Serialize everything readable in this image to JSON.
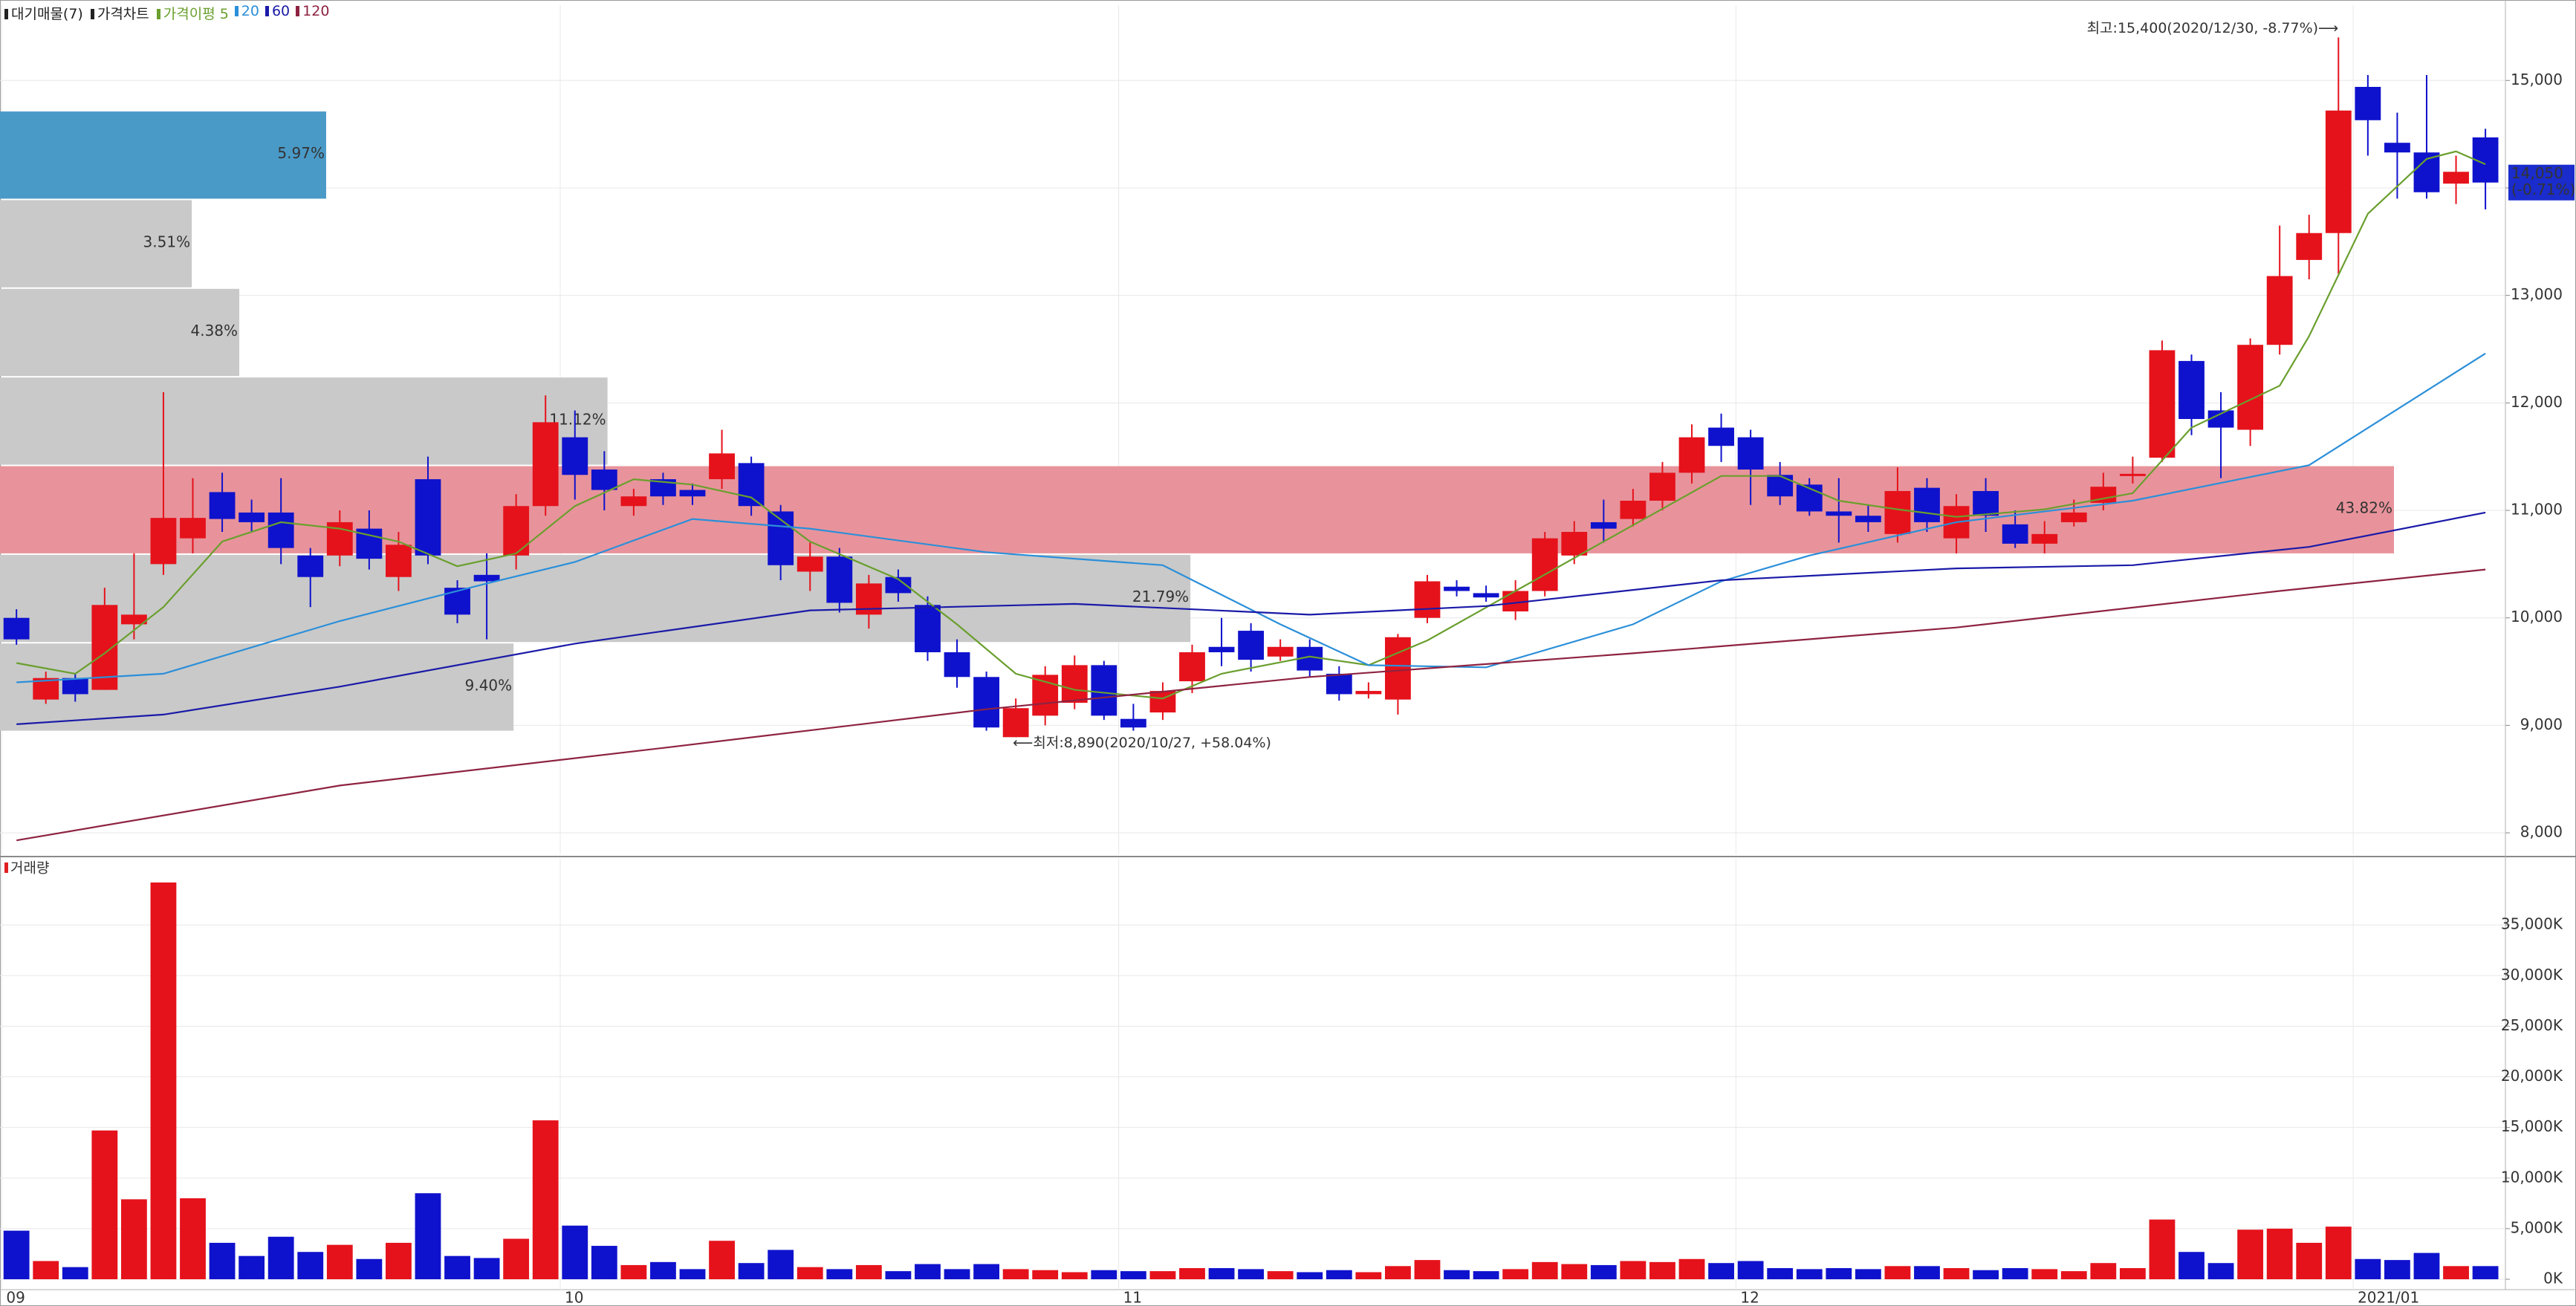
{
  "chart_data": [
    {
      "type": "candlestick",
      "name": "가격차트",
      "up_color": "#e5121b",
      "down_color": "#0f12cc",
      "xlim": [
        -0.56,
        84.68
      ],
      "ylim": [
        7800,
        15700
      ],
      "yticks": [
        {
          "value": 8000,
          "label": "8,000"
        },
        {
          "value": 9000,
          "label": "9,000"
        },
        {
          "value": 10000,
          "label": "10,000"
        },
        {
          "value": 11000,
          "label": "11,000"
        },
        {
          "value": 12000,
          "label": "12,000"
        },
        {
          "value": 13000,
          "label": "13,000"
        },
        {
          "value": 14000,
          "label": "14,000"
        },
        {
          "value": 15000,
          "label": "15,000"
        }
      ],
      "grid": true,
      "open": [
        10000,
        9240,
        9440,
        9330,
        9940,
        10500,
        10740,
        11170,
        10980,
        10980,
        10580,
        10580,
        10830,
        10380,
        11290,
        10280,
        10400,
        10580,
        11040,
        11680,
        11380,
        11040,
        11290,
        11190,
        11290,
        11440,
        10990,
        10430,
        10570,
        10030,
        10380,
        10120,
        9680,
        9450,
        8890,
        9090,
        9210,
        9560,
        9060,
        9120,
        9410,
        9730,
        9880,
        9640,
        9730,
        9480,
        9290,
        9240,
        10000,
        10290,
        10230,
        10060,
        10250,
        10580,
        10890,
        10920,
        11090,
        11350,
        11770,
        11680,
        11330,
        11240,
        10990,
        10950,
        10780,
        11210,
        10740,
        11180,
        10870,
        10690,
        10890,
        11070,
        11330,
        11490,
        12390,
        11930,
        11750,
        12540,
        13330,
        13580,
        14940,
        14420,
        14330,
        14040,
        14470
      ],
      "high": [
        10080,
        9500,
        9480,
        10280,
        10600,
        12100,
        11300,
        11350,
        11100,
        11300,
        10650,
        11000,
        11000,
        10800,
        11500,
        10350,
        10600,
        11150,
        12070,
        11930,
        11550,
        11200,
        11350,
        11250,
        11750,
        11500,
        11050,
        10700,
        10650,
        10400,
        10450,
        10200,
        9800,
        9500,
        9250,
        9550,
        9650,
        9600,
        9200,
        9400,
        9750,
        10000,
        9950,
        9800,
        9800,
        9550,
        9400,
        9850,
        10400,
        10350,
        10300,
        10350,
        10800,
        10900,
        11100,
        11200,
        11450,
        11800,
        11900,
        11750,
        11450,
        11300,
        11300,
        11050,
        11400,
        11300,
        11150,
        11300,
        11000,
        10900,
        11100,
        11350,
        11500,
        12580,
        12450,
        12100,
        12600,
        13650,
        13750,
        15400,
        15050,
        14700,
        15050,
        14300,
        14550
      ],
      "low": [
        9750,
        9200,
        9220,
        9330,
        9800,
        10400,
        10600,
        10800,
        10800,
        10500,
        10100,
        10480,
        10450,
        10250,
        10500,
        9950,
        9800,
        10450,
        10950,
        11100,
        11000,
        10950,
        11050,
        11050,
        11200,
        10950,
        10350,
        10250,
        10050,
        9900,
        10150,
        9600,
        9350,
        8950,
        8890,
        9000,
        9150,
        9050,
        8950,
        9050,
        9300,
        9550,
        9500,
        9600,
        9450,
        9230,
        9250,
        9100,
        9950,
        10200,
        10150,
        9980,
        10200,
        10500,
        10700,
        10850,
        11000,
        11250,
        11450,
        11050,
        11050,
        10950,
        10700,
        10800,
        10700,
        10800,
        10600,
        10800,
        10650,
        10600,
        10850,
        11000,
        11250,
        11450,
        11700,
        11300,
        11600,
        12450,
        13150,
        13200,
        14300,
        13900,
        13900,
        13850,
        13800
      ],
      "close": [
        9800,
        9440,
        9290,
        10120,
        10030,
        10930,
        10930,
        10920,
        10890,
        10650,
        10380,
        10890,
        10550,
        10680,
        10580,
        10030,
        10340,
        11040,
        11820,
        11330,
        11190,
        11130,
        11130,
        11130,
        11530,
        11040,
        10490,
        10570,
        10140,
        10320,
        10230,
        9680,
        9450,
        8980,
        9160,
        9470,
        9560,
        9090,
        8980,
        9320,
        9680,
        9680,
        9610,
        9730,
        9510,
        9290,
        9320,
        9820,
        10340,
        10250,
        10190,
        10250,
        10740,
        10800,
        10830,
        11090,
        11350,
        11680,
        11600,
        11380,
        11130,
        10990,
        10950,
        10890,
        11180,
        10890,
        11040,
        10950,
        10690,
        10780,
        10980,
        11220,
        11340,
        12490,
        11850,
        11770,
        12540,
        13180,
        13580,
        14720,
        14630,
        14330,
        13960,
        14150,
        14050
      ],
      "moving_average_label": "가격이평",
      "moving_averages": [
        {
          "name": "5",
          "color": "#6a9f2e",
          "x": [
            0,
            2,
            3,
            5,
            7,
            9,
            11,
            13,
            15,
            17,
            19,
            21,
            23,
            25,
            27,
            30,
            32,
            34,
            36,
            39,
            41,
            44,
            46,
            48,
            51,
            54,
            58,
            60,
            62,
            64,
            66,
            69,
            72,
            74,
            77,
            78,
            80,
            82,
            83,
            84
          ],
          "values": [
            9580,
            9480,
            9670,
            10100,
            10710,
            10890,
            10830,
            10710,
            10480,
            10600,
            11040,
            11290,
            11240,
            11120,
            10710,
            10360,
            9940,
            9480,
            9330,
            9250,
            9480,
            9640,
            9560,
            9790,
            10250,
            10710,
            11320,
            11320,
            11090,
            11010,
            10940,
            11010,
            11160,
            11770,
            12160,
            12620,
            13760,
            14270,
            14340,
            14220
          ]
        },
        {
          "name": "20",
          "color": "#2b8fd9",
          "x": [
            0,
            5,
            11,
            16,
            19,
            23,
            27,
            33,
            39,
            43,
            46,
            50,
            55,
            58,
            61,
            66,
            72,
            78,
            84
          ],
          "values": [
            9400,
            9480,
            9970,
            10320,
            10520,
            10920,
            10830,
            10610,
            10490,
            9940,
            9560,
            9540,
            9940,
            10340,
            10580,
            10890,
            11090,
            11420,
            12460
          ]
        },
        {
          "name": "60",
          "color": "#1a1aa8",
          "x": [
            0,
            5,
            11,
            19,
            27,
            36,
            44,
            50,
            58,
            66,
            72,
            78,
            84
          ],
          "values": [
            9010,
            9100,
            9360,
            9760,
            10070,
            10130,
            10030,
            10110,
            10350,
            10460,
            10490,
            10660,
            10980
          ]
        },
        {
          "name": "120",
          "color": "#8e2341",
          "x": [
            0,
            11,
            22,
            33,
            44,
            55,
            66,
            77,
            84
          ],
          "values": [
            7930,
            8440,
            8790,
            9150,
            9450,
            9670,
            9910,
            10250,
            10450
          ]
        }
      ],
      "volume_profile": {
        "name": "대기매물(7)",
        "bins": [
          8950,
          9775,
          10600,
          11425,
          12250,
          13075,
          13900,
          14725
        ],
        "values": [
          9.4,
          21.79,
          43.82,
          11.12,
          4.38,
          3.51,
          5.97
        ],
        "value_labels": [
          "9.40%",
          "21.79%",
          "43.82%",
          "11.12%",
          "4.38%",
          "3.51%",
          "5.97%"
        ],
        "colors": [
          "#c9c9c9",
          "#c9c9c9",
          "#e8939b",
          "#c9c9c9",
          "#c9c9c9",
          "#c9c9c9",
          "#4a9ac8"
        ]
      },
      "annotations": [
        {
          "text": "최고:15,400(2020/12/30, -8.77%)⟶",
          "x": 79,
          "value": 15400,
          "color": "#e02020",
          "anchor": "end"
        },
        {
          "text": "⟵최저:8,890(2020/10/27, +58.04%)",
          "x": 34,
          "value": 8890,
          "color": "#2020c0",
          "anchor": "start"
        }
      ],
      "current_price": {
        "value": 14050,
        "label": "14,050",
        "change_label": "(-0.71%)",
        "color": "#1a2ccc"
      }
    },
    {
      "type": "bar",
      "title": "거래량",
      "ylim": [
        0,
        40000
      ],
      "yticks": [
        {
          "value": 0,
          "label": "0K"
        },
        {
          "value": 5000,
          "label": "5,000K"
        },
        {
          "value": 10000,
          "label": "10,000K"
        },
        {
          "value": 15000,
          "label": "15,000K"
        },
        {
          "value": 20000,
          "label": "20,000K"
        },
        {
          "value": 25000,
          "label": "25,000K"
        },
        {
          "value": 30000,
          "label": "30,000K"
        },
        {
          "value": 35000,
          "label": "35,000K"
        }
      ],
      "xticks": [
        {
          "value": -0.5,
          "label": "09"
        },
        {
          "value": 18.5,
          "label": "10"
        },
        {
          "value": 37.5,
          "label": "11"
        },
        {
          "value": 58.5,
          "label": "12"
        },
        {
          "value": 79.5,
          "label": "2021/01"
        }
      ],
      "values": [
        4800,
        1800,
        1200,
        14700,
        7900,
        39200,
        8000,
        3600,
        2300,
        4200,
        2700,
        3400,
        2000,
        3600,
        8500,
        2300,
        2100,
        4000,
        15700,
        5300,
        3300,
        1400,
        1700,
        1000,
        3800,
        1600,
        2900,
        1200,
        1000,
        1400,
        800,
        1500,
        1000,
        1500,
        1000,
        900,
        700,
        900,
        800,
        800,
        1100,
        1100,
        1000,
        800,
        700,
        900,
        700,
        1300,
        1900,
        900,
        800,
        1000,
        1700,
        1500,
        1400,
        1800,
        1700,
        2000,
        1600,
        1800,
        1100,
        1000,
        1100,
        1000,
        1300,
        1300,
        1100,
        900,
        1100,
        1000,
        800,
        1600,
        1100,
        5900,
        2700,
        1600,
        4900,
        5000,
        3600,
        5200,
        2000,
        1900,
        2600,
        1300,
        1300
      ]
    }
  ]
}
